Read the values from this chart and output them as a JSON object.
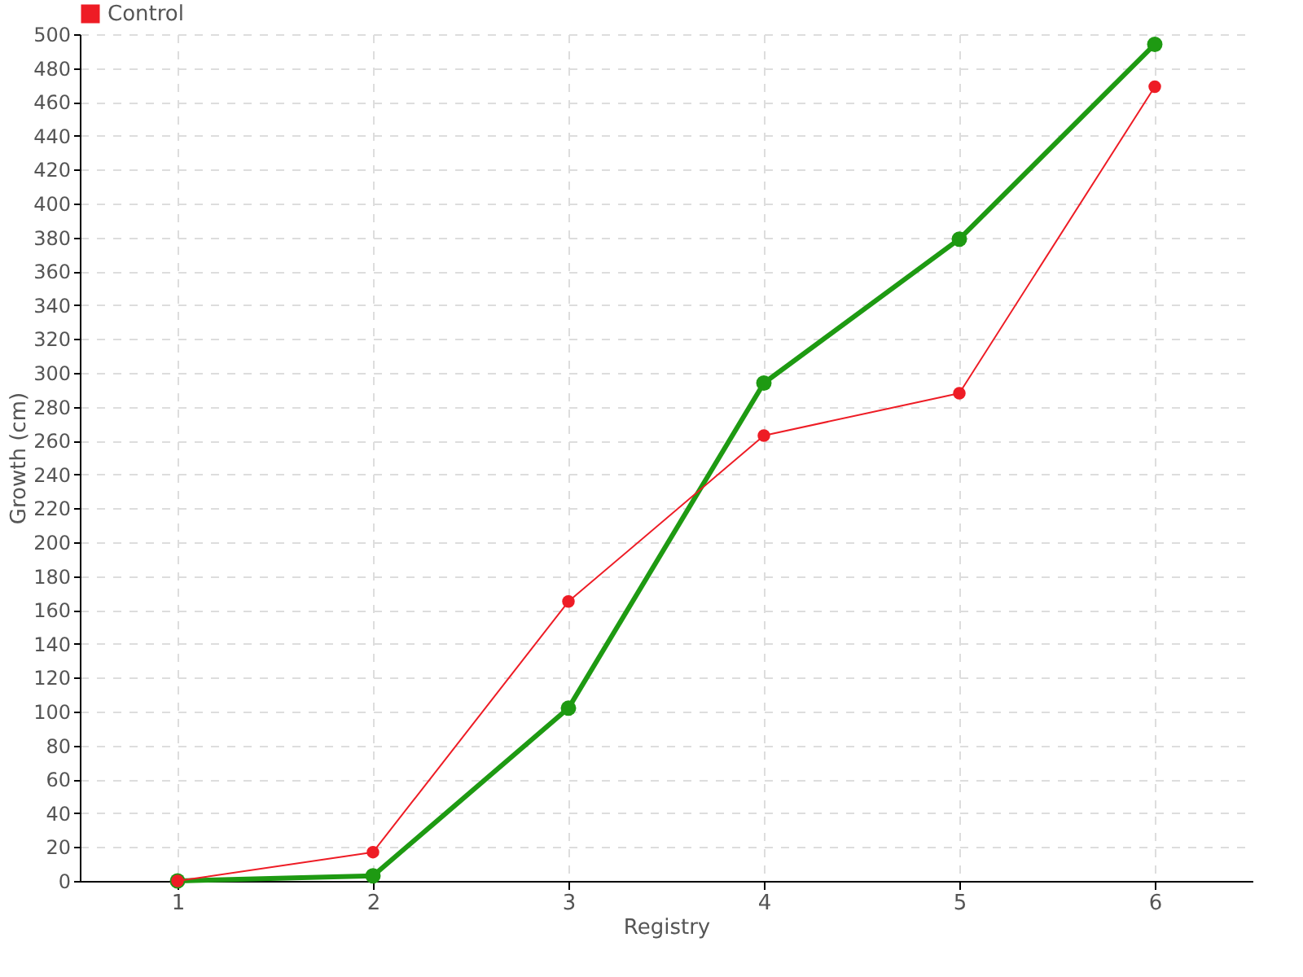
{
  "chart_data": {
    "type": "line",
    "xlabel": "Registry",
    "ylabel": "Growth (cm)",
    "categories": [
      "1",
      "2",
      "3",
      "4",
      "5",
      "6"
    ],
    "series": [
      {
        "color": "#1e9a12",
        "values": [
          0,
          3,
          102,
          294,
          379,
          494
        ]
      },
      {
        "name": "Control",
        "color": "#ee1c25",
        "values": [
          0,
          17,
          165,
          263,
          288,
          469
        ]
      }
    ],
    "ylim": [
      0,
      500
    ],
    "yticks": [
      0,
      20,
      40,
      60,
      80,
      100,
      120,
      140,
      160,
      180,
      200,
      220,
      240,
      260,
      280,
      300,
      320,
      340,
      360,
      380,
      400,
      420,
      440,
      460,
      480,
      500
    ],
    "grid": true,
    "legend": "top left",
    "marker": "circle",
    "line_style": "solid"
  }
}
